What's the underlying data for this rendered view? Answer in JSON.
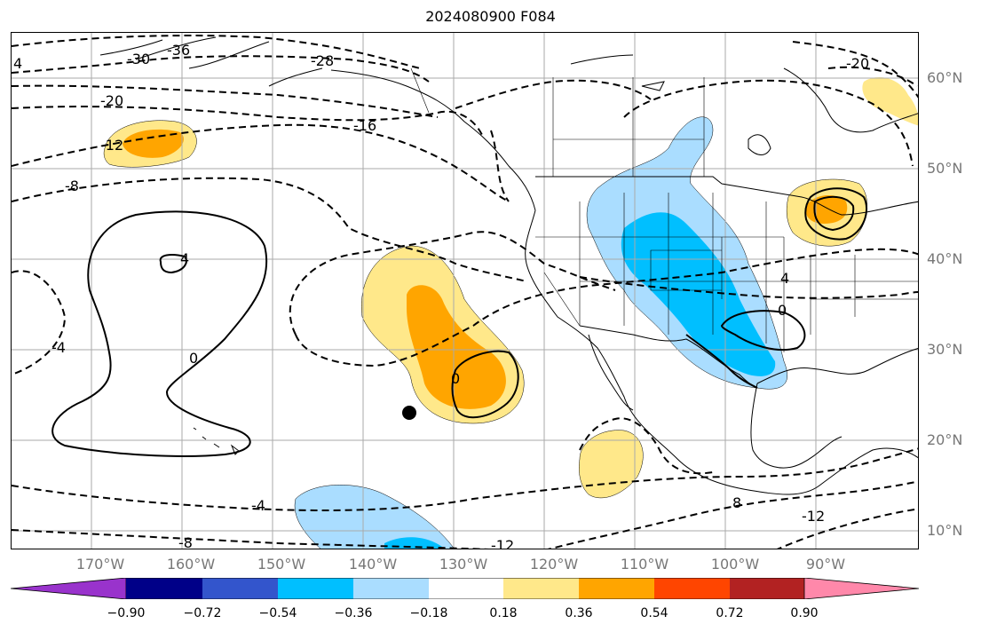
{
  "title": "2024080900 F084",
  "latitude_labels": [
    "60°N",
    "50°N",
    "40°N",
    "30°N",
    "20°N",
    "10°N"
  ],
  "longitude_labels": [
    "170°W",
    "160°W",
    "150°W",
    "140°W",
    "130°W",
    "120°W",
    "110°W",
    "100°W",
    "90°W"
  ],
  "contour_labels": [
    "4",
    "-30",
    "-36",
    "-28",
    "-20",
    "-16",
    "-20",
    "-12",
    "-8",
    "4",
    "0",
    "-4",
    "0",
    "4",
    "0",
    "-4",
    "-8",
    "8",
    "-12",
    "-12"
  ],
  "colorbar": {
    "ticks": [
      "−0.90",
      "−0.72",
      "−0.54",
      "−0.36",
      "−0.18",
      "0.18",
      "0.36",
      "0.54",
      "0.72",
      "0.90"
    ],
    "colors": [
      "#9933cc",
      "#000088",
      "#3355cc",
      "#00bfff",
      "#aaddff",
      "#ffffff",
      "#ffe88a",
      "#ffa500",
      "#ff4500",
      "#b22222",
      "#ff88aa"
    ]
  },
  "colors": {
    "light_blue": "#aaddff",
    "blue": "#00bfff",
    "light_yellow": "#ffe88a",
    "orange": "#ffa500",
    "grid": "#aaaaaa",
    "axis_text": "#777777"
  },
  "markers": [
    {
      "name": "storm-center-dot",
      "lon": -135,
      "lat": 23
    }
  ]
}
